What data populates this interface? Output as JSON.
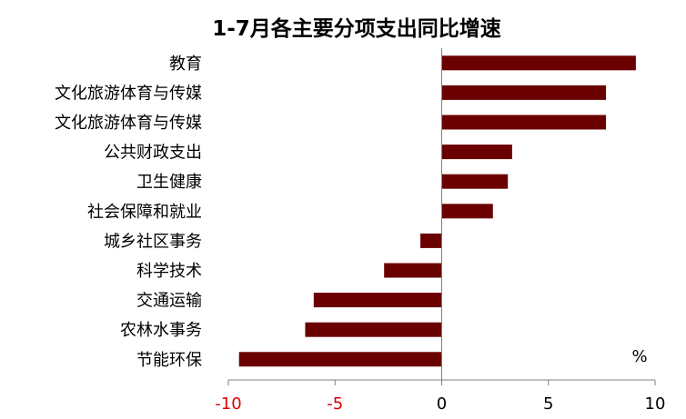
{
  "chart_data": {
    "type": "bar",
    "orientation": "horizontal",
    "title": "1-7月各主要分项支出同比增速",
    "unit": "%",
    "categories": [
      "教育",
      "文化旅游体育与传媒",
      "文化旅游体育与传媒",
      "公共财政支出",
      "卫生健康",
      "社会保障和就业",
      "城乡社区事务",
      "科学技术",
      "交通运输",
      "农林水事务",
      "节能环保"
    ],
    "values": [
      9.1,
      7.7,
      7.7,
      3.3,
      3.1,
      2.4,
      -1.0,
      -2.7,
      -6.0,
      -6.4,
      -9.5
    ],
    "xlim": [
      -10,
      10
    ],
    "xticks": [
      {
        "value": -10,
        "label": "-10"
      },
      {
        "value": -5,
        "label": "-5"
      },
      {
        "value": 0,
        "label": "0"
      },
      {
        "value": 5,
        "label": "5"
      },
      {
        "value": 10,
        "label": "10"
      }
    ],
    "grid": false,
    "colors": {
      "bar": "#6b0000",
      "axis": "#808080",
      "negative_tick": "#e00000",
      "positive_tick": "#000000"
    }
  }
}
